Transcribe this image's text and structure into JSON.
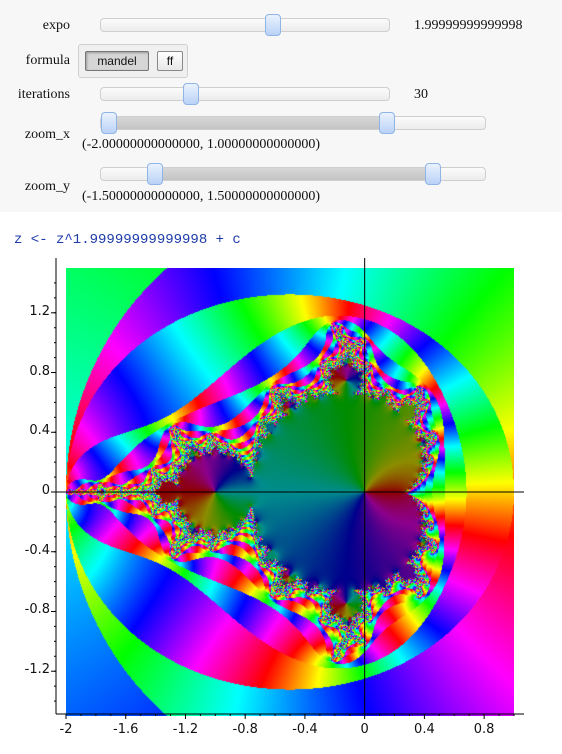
{
  "controls": {
    "expo": {
      "label": "expo",
      "value": "1.99999999999998",
      "fraction": 0.6
    },
    "formula": {
      "label": "formula",
      "buttons": [
        {
          "label": "mandel",
          "selected": true
        },
        {
          "label": "ff",
          "selected": false
        }
      ]
    },
    "iterations": {
      "label": "iterations",
      "value": "30",
      "fraction": 0.3
    },
    "zoom_x": {
      "label": "zoom_x",
      "value": "(-2.00000000000000, 1.00000000000000)",
      "low_fraction": 0.0,
      "high_fraction": 0.75
    },
    "zoom_y": {
      "label": "zoom_y",
      "value": "(-1.50000000000000, 1.50000000000000)",
      "low_fraction": 0.125,
      "high_fraction": 0.875
    }
  },
  "formula_text": "z <- z^1.99999999999998 + c",
  "chart_data": {
    "type": "heatmap",
    "title": "",
    "xlabel": "",
    "ylabel": "",
    "xlim": [
      -2.0,
      1.0
    ],
    "ylim": [
      -1.5,
      1.5
    ],
    "x_ticks": [
      "-2",
      "-1.6",
      "-1.2",
      "-0.8",
      "-0.4",
      "0",
      "0.4",
      "0.8"
    ],
    "y_ticks": [
      "1.2",
      "0.8",
      "0.4",
      "0",
      "-0.4",
      "-0.8",
      "-1.2"
    ],
    "description_colormap": "hue"
  }
}
